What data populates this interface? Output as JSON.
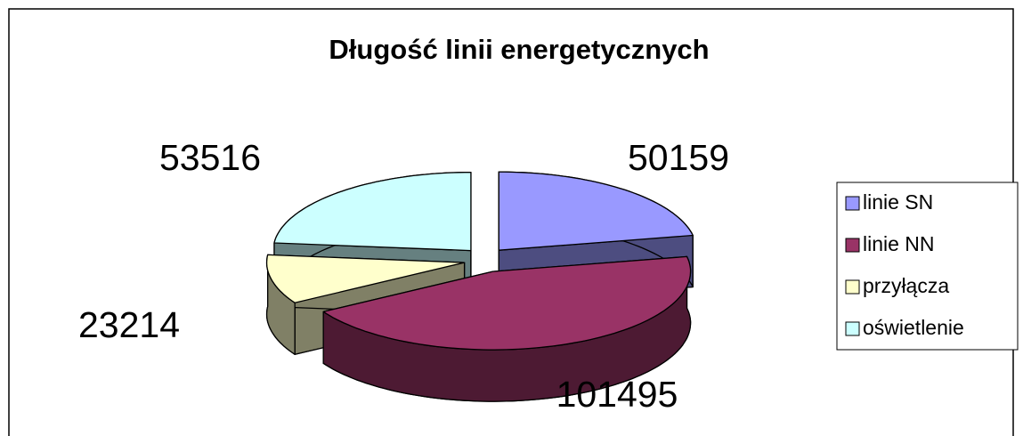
{
  "chart_data": {
    "type": "pie",
    "title": "Długość linii energetycznych",
    "categories": [
      "linie SN",
      "linie NN",
      "przyłącza",
      "oświetlenie"
    ],
    "values": [
      50159,
      101495,
      23214,
      53516
    ],
    "colors": [
      "#9999ff",
      "#993366",
      "#ffffcc",
      "#ccffff"
    ],
    "legend": "right"
  }
}
